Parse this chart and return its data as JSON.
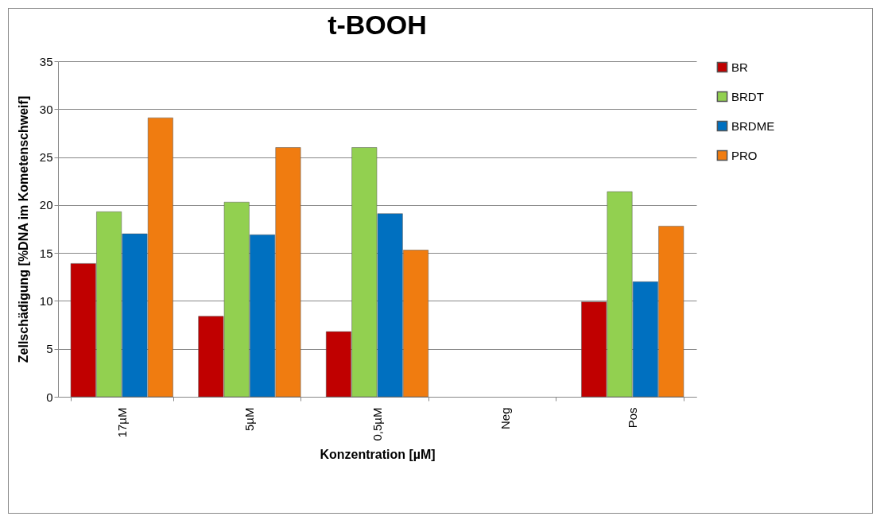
{
  "chart_data": {
    "type": "bar",
    "title": "t-BOOH",
    "xlabel": "Konzentration [µM]",
    "ylabel": "Zellschädigung [%DNA im Kometenschweif]",
    "categories": [
      "17µM",
      "5µM",
      "0,5µM",
      "Neg",
      "Pos"
    ],
    "series": [
      {
        "name": "BR",
        "color": "#c00000",
        "values": [
          13.9,
          8.4,
          6.8,
          null,
          9.9
        ]
      },
      {
        "name": "BRDT",
        "color": "#92d050",
        "values": [
          19.3,
          20.3,
          26.0,
          null,
          21.4
        ]
      },
      {
        "name": "BRDME",
        "color": "#0070c0",
        "values": [
          17.0,
          16.9,
          19.1,
          null,
          12.0
        ]
      },
      {
        "name": "PRO",
        "color": "#f07c10",
        "values": [
          29.1,
          26.0,
          15.3,
          null,
          17.8
        ]
      }
    ],
    "ylim": [
      0,
      35
    ],
    "yticks": [
      0,
      5,
      10,
      15,
      20,
      25,
      30,
      35
    ],
    "grid": "y",
    "legend": "right"
  }
}
